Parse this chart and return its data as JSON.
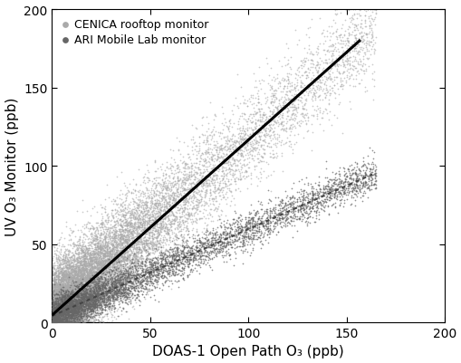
{
  "xlabel": "DOAS-1 Open Path O₃ (ppb)",
  "ylabel": "UV O₃ Monitor (ppb)",
  "xlim": [
    0,
    200
  ],
  "ylim": [
    0,
    200
  ],
  "xticks": [
    0,
    50,
    100,
    150,
    200
  ],
  "yticks": [
    0,
    50,
    100,
    150,
    200
  ],
  "legend1_label": "CENICA rooftop monitor",
  "legend2_label": "ARI Mobile Lab monitor",
  "scatter1_color": "#aaaaaa",
  "scatter1_size": 1.5,
  "scatter2_color": "#666666",
  "scatter2_size": 1.5,
  "scatter1_alpha": 0.6,
  "scatter2_alpha": 0.7,
  "line1_slope": 1.12,
  "line1_intercept": 4.5,
  "line1_color": "#000000",
  "line1_lw": 2.2,
  "line1_x0": 0,
  "line1_x1": 157,
  "line2_slope": 0.555,
  "line2_intercept": 4.0,
  "line2_color": "#444444",
  "line2_lw": 1.5,
  "line2_x0": 0,
  "line2_x1": 163,
  "n_scatter1": 15000,
  "n_scatter2": 6000,
  "seed1": 42,
  "seed2": 99,
  "scatter1_noise_y": 15,
  "scatter2_noise_y": 6,
  "background_color": "#ffffff",
  "tick_fontsize": 10,
  "label_fontsize": 11,
  "legend_fontsize": 9
}
